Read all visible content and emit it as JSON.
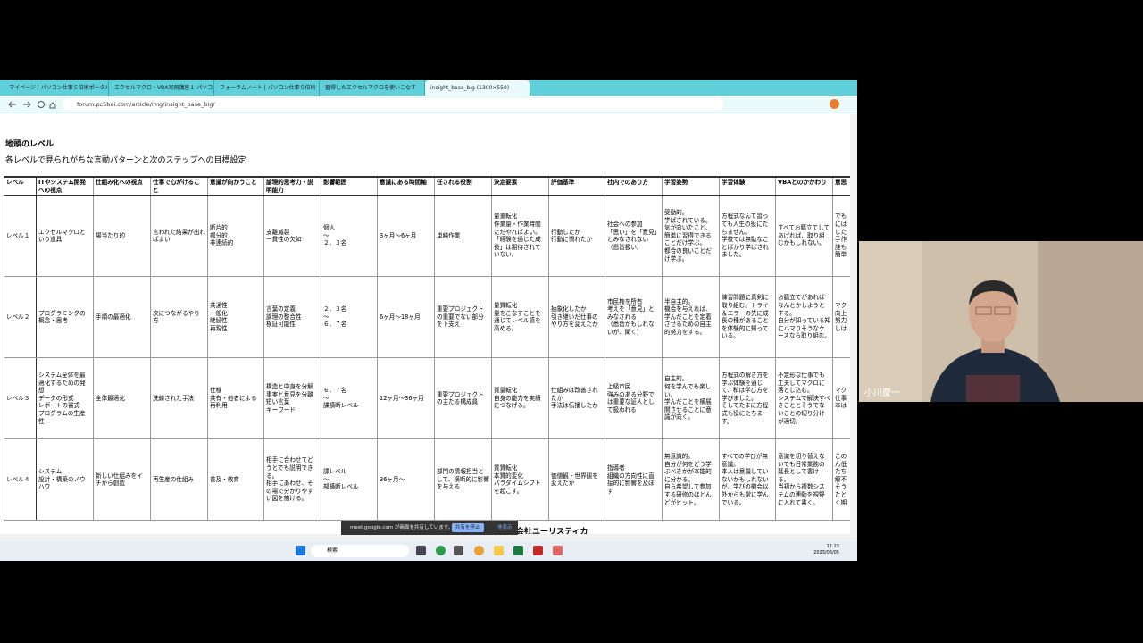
{
  "browser": {
    "tabs": [
      "マイページ | パソコン仕事５倍術ポータル",
      "エクセルマクロ・VBA実務講座１ パソコ",
      "フォーラムノート | パソコン仕事５倍術",
      "習得したエクセルマクロを使いこなす",
      "insight_base_big (1300×550)"
    ],
    "url": "forum.pc5bai.com/article/img/insight_base_big/"
  },
  "page": {
    "title": "地頭のレベル",
    "subtitle": "各レベルで見られがちな言動パターンと次のステップへの目標設定",
    "table": {
      "headers": [
        "レベル",
        "ITやシステム開発への視点",
        "仕組み化への視点",
        "仕事で心がけること",
        "意識が向かうこと",
        "論理的思考力・説明能力",
        "影響範囲",
        "意識にある時間軸",
        "任される役割",
        "決定要素",
        "評価基準",
        "社内でのあり方",
        "学習姿勢",
        "学習体験",
        "VBAとのかかわり",
        "意思"
      ],
      "rows": [
        [
          "レベル１",
          "エクセルマクロという道具",
          "場当たり的",
          "言われた結果が出ればよい",
          "断片的\n部分的\n非連続的",
          "支離滅裂\n一貫性の欠如",
          "個人\n～\n２、３名",
          "3ヶ月～6ヶ月",
          "単純作業",
          "量重転化\n作業量・作業時間\nただやればよい。\n「経験を通じた成長」は期待されていない。",
          "行動したか\n行動に慣れたか",
          "社会への参加\n「思い」を「意見」とみなされない\n（悉皆扱い）",
          "受動的。\n学ばされている。\n気が向いたこと、簡単に習得できることだけ学ぶ。\n都合の良いことだけ学ぶ。",
          "方程式なんて習っても人生の役にたちません。\n学校では無駄なことばかり学ばされました。",
          "すべてお膳立てしてあげれば、取り組むかもしれない。",
          "でも\nには\nした\n手作\n誰も\n簡単"
        ],
        [
          "レベル２",
          "プログラミングの概念・思考",
          "手順の最適化",
          "次につながるやり方",
          "共通性\n一般化\n継続性\n再現性",
          "言葉の定義\n論理の整合性\n検証可能性",
          "２、３名\n～\n６、７名",
          "6ヶ月～18ヶ月",
          "重要プロジェクトの重要でない部分を下支え",
          "量質転化\n量をこなすことを通じてレベル感を高める。",
          "抽象化したか\n引き継いだ仕事のやり方を変えたか",
          "市民権を所有\n考えを「意見」とみなされる\n（悉皆かもしれないが、聞く）",
          "半自主的。\n機会を与えれば、学んだことを定着させるための自主的努力をする。",
          "練習問題に真剣に取り組む。トライ＆エラーの先に成長の種があることを体験的に知っている。",
          "お膳立てがあればなんとかしようとする。\n自分が知っている知にハマりそうなケースなら取り組む。",
          "マク\n向上\n努力\nしは"
        ],
        [
          "レベル３",
          "システム全体を最適化するための発想\nデータの形式\nレポートの書式\nプログラムの生産性",
          "全体最適化",
          "洗練された手法",
          "仕様\n共有・他者による再利用",
          "構造と中身を分解\n事実と意見を分離\n短い言葉\nキーワード",
          "６、７名\n～\n課横断レベル",
          "12ヶ月～36ヶ月",
          "重要プロジェクトの主たる構成員",
          "質量転化\n自身の能力を実績につなげる。",
          "仕組みは改善されたか\n手法は伝播したか",
          "上級市民\n強みのある分野では重要な証人として扱われる",
          "自主的。\n何を学んでも楽しい。\n学んだことを横展開させることに意識が向く。",
          "方程式の解き方を学ぶ体験を通じて、私は学び方を学びました。\nそしてたまに方程式も役にたちます。",
          "不定形な仕事でも工夫してマクロに落とし込む。\nシステムで解決すべきこととそうでないことの切り分けが適切。",
          "マク\n仕事\n本は"
        ],
        [
          "レベル４",
          "システム\n設計・構築のノウハウ",
          "新しい仕組みをイチから創造",
          "再生産の仕組み",
          "普及・教育",
          "相手に合わせてどうとでも説明できる。\n相手にあわせ、その場で分かりやすい図を描ける。",
          "課レベル\n～\n部横断レベル",
          "36ヶ月～",
          "部門の情報担当として、横断的に影響を与える",
          "質質転化\n本質的変化\nパラダイムシフトを起こす。",
          "価値観・世界観を変えたか",
          "指導者\n組織の方向性に直接的に影響を及ぼす",
          "無意識的。\n自分が何をどう学ぶべきかが本能的に分かる。\n自ら希望して参加する研修のほとんどがヒット。",
          "すべての学びが無意識。\n本人は意識していないかもしれないが、学びの機会以外からも常に学んでいる。",
          "意識を切り替えないでも日常業務の延長として書ける。\n当初から複数システムの連動を視野に入れて書く。",
          "この\nん低\nたち\n解不\nそう\nたと\nく期"
        ]
      ]
    },
    "footer_text": "有限会社ユーリスティカ"
  },
  "share_banner": {
    "message": "meet.google.com が画面を共有しています。",
    "stop": "共有を停止",
    "hide": "非表示"
  },
  "taskbar": {
    "search": "検索",
    "time": "11:23",
    "date": "2023/08/05"
  },
  "participant": {
    "name": "小川慶一"
  }
}
